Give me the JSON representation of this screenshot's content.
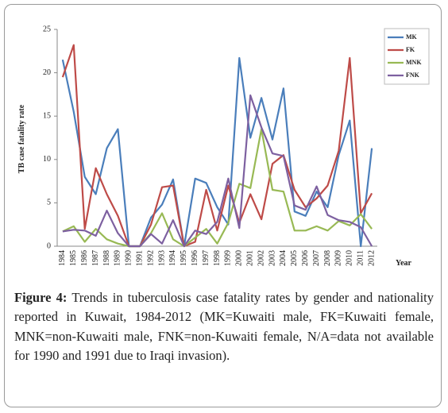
{
  "chart_data": {
    "type": "line",
    "ylabel": "TB case fatality rate",
    "xlabel": "Year",
    "categories": [
      "1984",
      "1985",
      "1986",
      "1987",
      "1988",
      "1989",
      "1990",
      "1991",
      "1992",
      "1993",
      "1994",
      "1995",
      "1996",
      "1997",
      "1998",
      "1999",
      "2000",
      "2001",
      "2002",
      "2003",
      "2004",
      "2005",
      "2006",
      "2007",
      "2008",
      "2009",
      "2010",
      "2011",
      "2012"
    ],
    "series": [
      {
        "name": "MK",
        "color": "#4a7ebb",
        "values": [
          21.5,
          15.5,
          8,
          6,
          11.3,
          13.5,
          0,
          0,
          3.3,
          4.8,
          7.7,
          0,
          7.8,
          7.3,
          4.5,
          2.5,
          21.7,
          12.5,
          17.1,
          12.3,
          18.2,
          4,
          3.5,
          6.3,
          4.5,
          10.5,
          14.5,
          0,
          11.3
        ]
      },
      {
        "name": "FK",
        "color": "#be4b48",
        "values": [
          19.5,
          23.2,
          2,
          9,
          6,
          3.5,
          0,
          0,
          2.5,
          6.8,
          7,
          0,
          0.5,
          6.5,
          1.8,
          7,
          2.7,
          6,
          3.1,
          9.5,
          10.5,
          6.5,
          4.5,
          5.5,
          7,
          11,
          21.7,
          3.8,
          6.1
        ]
      },
      {
        "name": "MNK",
        "color": "#98b954",
        "values": [
          1.7,
          2.3,
          0.5,
          2,
          0.8,
          0.3,
          0,
          0,
          1.5,
          3.8,
          0.8,
          0,
          1,
          2,
          0.3,
          2.7,
          7.2,
          6.7,
          13.5,
          6.5,
          6.3,
          1.8,
          1.8,
          2.3,
          1.8,
          2.9,
          2.4,
          3.7,
          2
        ]
      },
      {
        "name": "FNK",
        "color": "#7d60a0",
        "values": [
          1.7,
          1.9,
          1.8,
          1.2,
          4.1,
          1.5,
          0,
          0,
          1.4,
          0.3,
          3,
          0,
          1.8,
          1.4,
          2.8,
          7.8,
          2.1,
          17.4,
          13.7,
          10.7,
          10.4,
          4.7,
          4.2,
          6.9,
          3.6,
          3,
          2.8,
          2.2,
          0
        ]
      }
    ],
    "ylim": [
      0,
      25
    ],
    "yticks": [
      0,
      5,
      10,
      15,
      20,
      25
    ],
    "grid": false,
    "legend": "top-right",
    "caption": {
      "label": "Figure 4:",
      "text": "Trends in tuberculosis case fatality rates by gender and nationality reported in Kuwait, 1984-2012 (MK=Kuwaiti male, FK=Kuwaiti female, MNK=non-Kuwaiti male, FNK=non-Kuwaiti female, N/A=data not available for 1990 and 1991 due to Iraqi invasion)."
    }
  }
}
